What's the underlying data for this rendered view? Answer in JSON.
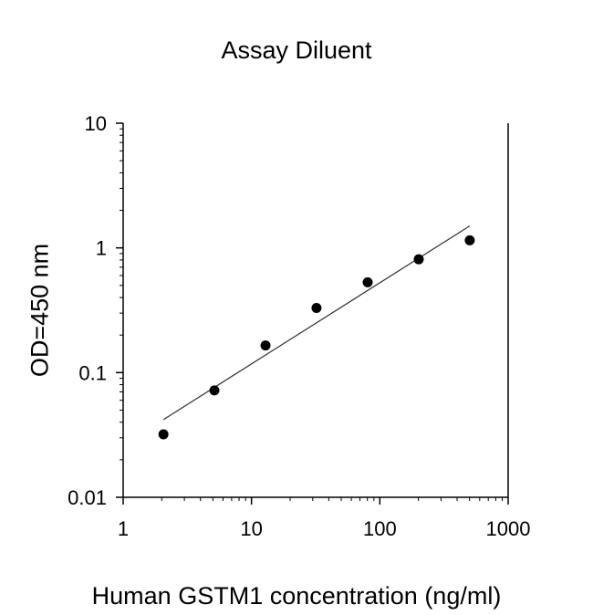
{
  "chart_data": {
    "type": "scatter",
    "title": "Assay Diluent",
    "xlabel": "Human GSTM1 concentration (ng/ml)",
    "ylabel": "OD=450 nm",
    "x_scale": "log",
    "y_scale": "log",
    "xlim": [
      1,
      1000
    ],
    "ylim": [
      0.01,
      10
    ],
    "x_ticks": [
      1,
      10,
      100,
      1000
    ],
    "x_tick_labels": [
      "1",
      "10",
      "100",
      "1000"
    ],
    "y_ticks": [
      0.01,
      0.1,
      1,
      10
    ],
    "y_tick_labels": [
      "0.01",
      "0.1",
      "1",
      "10"
    ],
    "grid": false,
    "series": [
      {
        "x": [
          2.06,
          5.14,
          12.86,
          32.1,
          80.4,
          201,
          502
        ],
        "y": [
          0.032,
          0.072,
          0.165,
          0.33,
          0.53,
          0.81,
          1.15
        ]
      }
    ],
    "fit_line": {
      "x": [
        2.06,
        502
      ],
      "y": [
        0.042,
        1.5
      ]
    },
    "colors": {
      "marker": "#000000",
      "line": "#333333",
      "axis": "#000000"
    }
  }
}
